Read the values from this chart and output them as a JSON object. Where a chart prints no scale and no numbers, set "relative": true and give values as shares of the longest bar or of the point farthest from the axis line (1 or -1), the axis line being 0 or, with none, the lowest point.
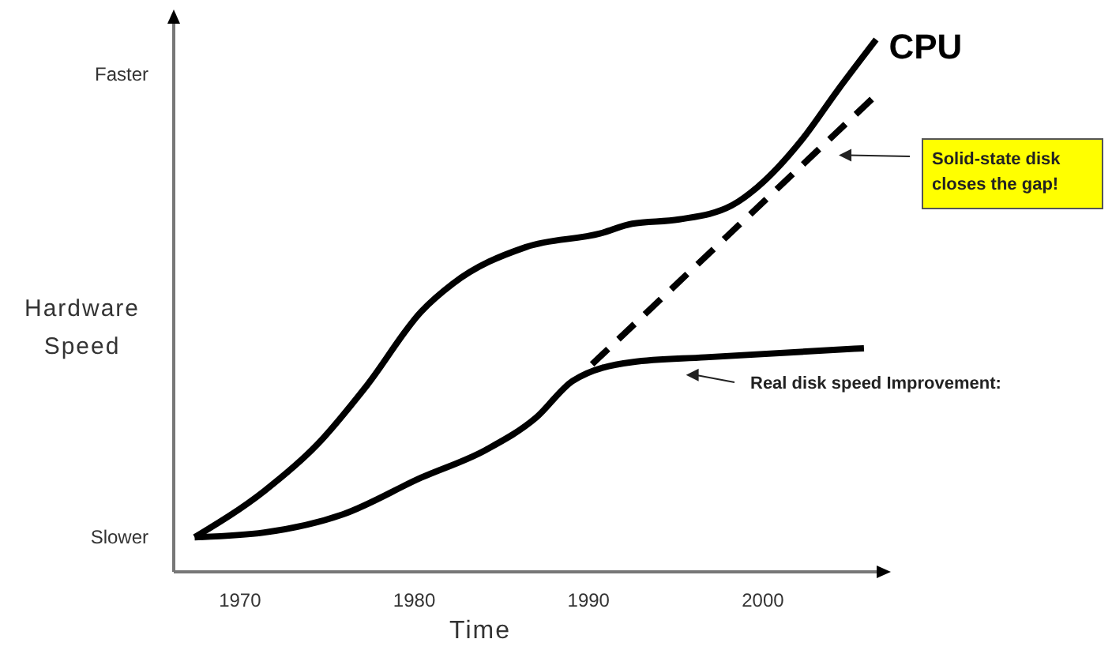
{
  "chart_data": {
    "type": "line",
    "relative": true,
    "xlabel": "Time",
    "ylabel": "Hardware\nSpeed",
    "xlim": [
      1966.2,
      2006.8
    ],
    "xticks": [
      1970,
      1980,
      1990,
      2000
    ],
    "grid": false,
    "marker": "none",
    "annotations": [
      "Faster",
      "Slower"
    ],
    "series": [
      {
        "name": "CPU",
        "color": "#000000",
        "line_style": "solid",
        "x": [
          1967.4,
          1971.4,
          1974.4,
          1977.3,
          1980.4,
          1982.2,
          1986.4,
          1990.7,
          1992.5,
          1995.2,
          1998.2,
          1999.7,
          2002.2,
          2004.3,
          2006.5
        ],
        "values": [
          0.065,
          0.152,
          0.238,
          0.351,
          0.489,
          0.541,
          0.61,
          0.636,
          0.654,
          0.662,
          0.688,
          0.723,
          0.81,
          0.905,
          1
        ]
      },
      {
        "name": "Solid-state disk\ncloses the gap!",
        "color": "#000000",
        "line_style": "dashed",
        "x": [
          1990.2,
          2006.8
        ],
        "values": [
          0.39,
          0.905
        ]
      },
      {
        "name": "Real disk speed Improvement:",
        "color": "#000000",
        "line_style": "solid",
        "x": [
          1967.4,
          1971.4,
          1975.9,
          1980.4,
          1984.1,
          1987.0,
          1989.1,
          1992.5,
          1996.7,
          2005.8
        ],
        "values": [
          0.065,
          0.074,
          0.108,
          0.177,
          0.229,
          0.29,
          0.359,
          0.394,
          0.403,
          0.42
        ]
      }
    ]
  }
}
